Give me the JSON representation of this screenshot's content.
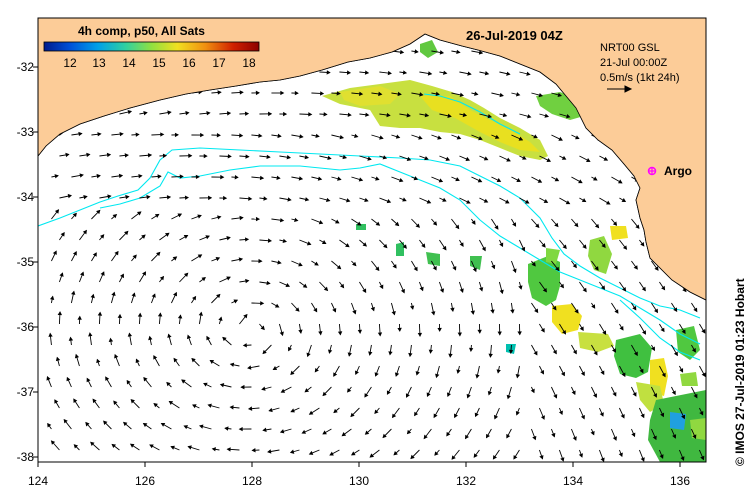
{
  "title": "26-Jul-2019 04Z",
  "colorbar": {
    "label": "4h comp, p50, All Sats",
    "ticks": [
      "12",
      "13",
      "14",
      "15",
      "16",
      "17",
      "18"
    ],
    "colors": [
      "#001a8c",
      "#0050d8",
      "#00a0e8",
      "#30d0a0",
      "#90e040",
      "#f0e020",
      "#f09010",
      "#d02000",
      "#8c0000"
    ]
  },
  "legend": {
    "product": "NRT00 GSL",
    "date": "21-Jul 00:00Z",
    "scale": "0.5m/s (1kt 24h)"
  },
  "marker": {
    "label": "Argo",
    "color": "#ff00ff"
  },
  "axes": {
    "x_ticks": [
      "124",
      "126",
      "128",
      "130",
      "132",
      "134",
      "136"
    ],
    "y_ticks": [
      "-32",
      "-33",
      "-34",
      "-35",
      "-36",
      "-37",
      "-38"
    ],
    "lon_range": [
      124,
      136.5
    ],
    "lat_range": [
      -38.1,
      -31.3
    ]
  },
  "credit": "© IMOS 27-Jul-2019 01:23 Hobart",
  "colors": {
    "land": "#fccc98",
    "contour": "#00e8f0",
    "frame": "#000000"
  }
}
